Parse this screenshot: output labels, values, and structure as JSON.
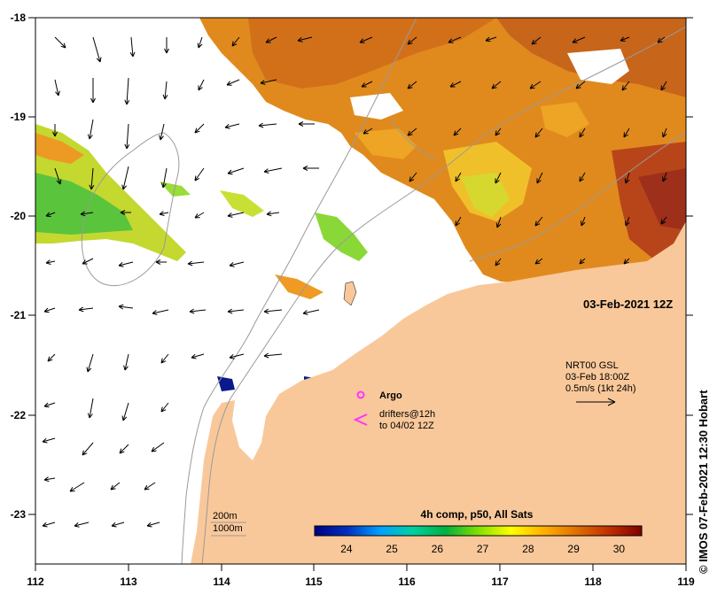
{
  "map": {
    "date_label": "03-Feb-2021 12Z",
    "x_ticks": [
      "112",
      "113",
      "114",
      "115",
      "116",
      "117",
      "118",
      "119"
    ],
    "y_ticks": [
      "-18",
      "-19",
      "-20",
      "-21",
      "-22",
      "-23"
    ],
    "lon_range": [
      112,
      119
    ],
    "lat_range": [
      -23.5,
      -18
    ],
    "colors": {
      "land": "#f9c89a",
      "shelf_water": "#ffffff",
      "axis": "#000000"
    }
  },
  "current_legend": {
    "line1": "NRT00 GSL",
    "line2": "03-Feb 18:00Z",
    "line3": "0.5m/s (1kt 24h)"
  },
  "argo_legend": {
    "label": "Argo",
    "color": "#ff33ff"
  },
  "drifters_legend": {
    "line1": "drifters@12h",
    "line2": "to 04/02 12Z",
    "color": "#ff33ff"
  },
  "isobaths": {
    "line1": "200m",
    "line2": "1000m"
  },
  "colorbar": {
    "title": "4h comp, p50, All Sats",
    "tick_labels": [
      "24",
      "25",
      "26",
      "27",
      "28",
      "29",
      "30"
    ],
    "range": [
      23.3,
      30.5
    ],
    "stops": [
      "#000080",
      "#0030c0",
      "#00a0ff",
      "#00d0a0",
      "#00b040",
      "#80e000",
      "#ffff00",
      "#ffb000",
      "#e07000",
      "#c03000",
      "#800000"
    ]
  },
  "credit": "© IMOS 07-Feb-2021 12:30 Hobart"
}
